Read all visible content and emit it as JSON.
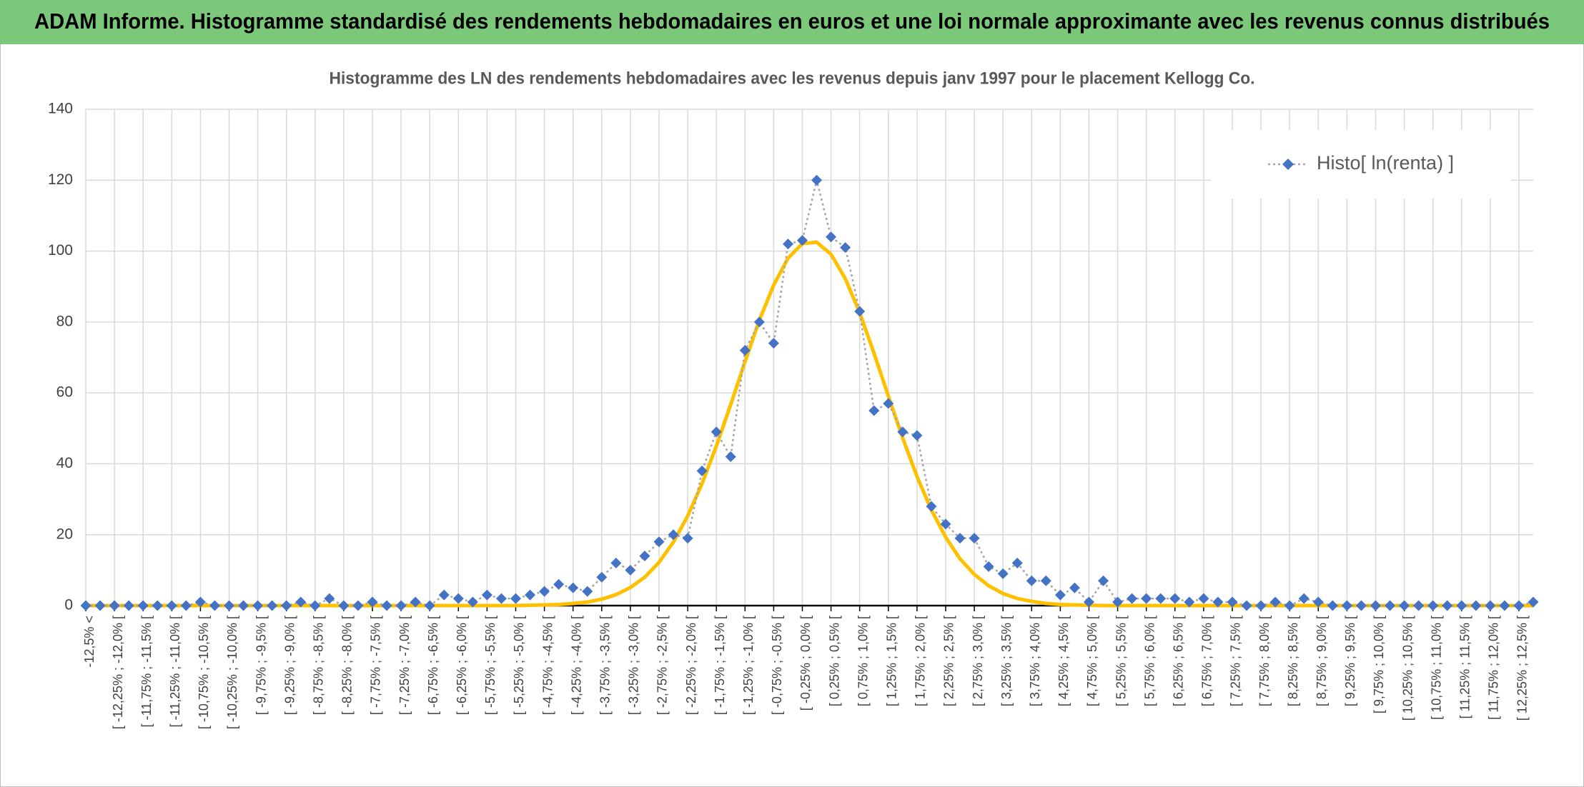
{
  "header": {
    "title": "ADAM Informe. Histogramme standardisé des rendements hebdomadaires en euros et une loi normale approximante avec les revenus connus distribués"
  },
  "chart_data": {
    "type": "line",
    "title": "Histogramme des LN des rendements hebdomadaires avec les revenus depuis janv 1997 pour le placement Kellogg Co.",
    "categories": [
      "-12,5% <",
      null,
      "[ -12,25% ; -12,0% [",
      null,
      "[ -11,75% ; -11,5% [",
      null,
      "[ -11,25% ; -11,0% [",
      null,
      "[ -10,75% ; -10,5% [",
      null,
      "[ -10,25% ; -10,0% [",
      null,
      "[ -9,75% ; -9,5% [",
      null,
      "[ -9,25% ; -9,0% [",
      null,
      "[ -8,75% ; -8,5% [",
      null,
      "[ -8,25% ; -8,0% [",
      null,
      "[ -7,75% ; -7,5% [",
      null,
      "[ -7,25% ; -7,0% [",
      null,
      "[ -6,75% ; -6,5% [",
      null,
      "[ -6,25% ; -6,0% [",
      null,
      "[ -5,75% ; -5,5% [",
      null,
      "[ -5,25% ; -5,0% [",
      null,
      "[ -4,75% ; -4,5% [",
      null,
      "[ -4,25% ; -4,0% [",
      null,
      "[ -3,75% ; -3,5% [",
      null,
      "[ -3,25% ; -3,0% [",
      null,
      "[ -2,75% ; -2,5% [",
      null,
      "[ -2,25% ; -2,0% [",
      null,
      "[ -1,75% ; -1,5% [",
      null,
      "[ -1,25% ; -1,0% [",
      null,
      "[ -0,75% ; -0,5% [",
      null,
      "[ -0,25% ; 0,0% [",
      null,
      "[ 0,25% ; 0,5% [",
      null,
      "[ 0,75% ; 1,0% [",
      null,
      "[ 1,25% ; 1,5% [",
      null,
      "[ 1,75% ; 2,0% [",
      null,
      "[ 2,25% ; 2,5% [",
      null,
      "[ 2,75% ; 3,0% [",
      null,
      "[ 3,25% ; 3,5% [",
      null,
      "[ 3,75% ; 4,0% [",
      null,
      "[ 4,25% ; 4,5% [",
      null,
      "[ 4,75% ; 5,0% [",
      null,
      "[ 5,25% ; 5,5% [",
      null,
      "[ 5,75% ; 6,0% [",
      null,
      "[ 6,25% ; 6,5% [",
      null,
      "[ 6,75% ; 7,0% [",
      null,
      "[ 7,25% ; 7,5% [",
      null,
      "[ 7,75% ; 8,0% [",
      null,
      "[ 8,25% ; 8,5% [",
      null,
      "[ 8,75% ; 9,0% [",
      null,
      "[ 9,25% ; 9,5% [",
      null,
      "[ 9,75% ; 10,0% [",
      null,
      "[ 10,25% ; 10,5% [",
      null,
      "[ 10,75% ; 11,0% [",
      null,
      "[ 11,25% ; 11,5% [",
      null,
      "[ 11,75% ; 12,0% [",
      null,
      "[ 12,25% ; 12,5% [",
      null
    ],
    "series": [
      {
        "name": "Histo[ ln(renta) ]",
        "color": "#4472c4",
        "line_color": "#a5a5a5",
        "marker": "diamond",
        "values": [
          0,
          0,
          0,
          0,
          0,
          0,
          0,
          0,
          1,
          0,
          0,
          0,
          0,
          0,
          0,
          1,
          0,
          2,
          0,
          0,
          1,
          0,
          0,
          1,
          0,
          3,
          2,
          1,
          3,
          2,
          2,
          3,
          4,
          6,
          5,
          4,
          8,
          12,
          10,
          14,
          18,
          20,
          19,
          38,
          49,
          42,
          72,
          80,
          74,
          102,
          103,
          120,
          104,
          101,
          83,
          55,
          57,
          49,
          48,
          28,
          23,
          19,
          19,
          11,
          9,
          12,
          7,
          7,
          3,
          5,
          1,
          7,
          1,
          2,
          2,
          2,
          2,
          1,
          2,
          1,
          1,
          0,
          0,
          1,
          0,
          2,
          1,
          0,
          0,
          0,
          0,
          0,
          0,
          0,
          0,
          0,
          0,
          0,
          0,
          0,
          0,
          1
        ]
      },
      {
        "color": "#ffc000",
        "values": [
          0,
          0,
          0,
          0,
          0,
          0,
          0,
          0,
          0,
          0,
          0,
          0,
          0,
          0,
          0,
          0,
          0,
          0,
          0,
          0,
          0,
          0,
          0,
          0,
          0,
          0,
          0,
          0,
          0,
          0,
          0,
          0.1,
          0.2,
          0.3,
          0.6,
          1,
          1.8,
          3.1,
          5.1,
          8,
          12.2,
          17.9,
          25.3,
          34.4,
          45,
          56.7,
          68.8,
          80.5,
          90.4,
          98,
          102.1,
          102.5,
          99.1,
          92.2,
          82.6,
          71.2,
          59.1,
          47.3,
          36.4,
          27,
          19.3,
          13.2,
          8.8,
          5.6,
          3.4,
          2,
          1.2,
          0.6,
          0.3,
          0.2,
          0.1,
          0,
          0,
          0,
          0,
          0,
          0,
          0,
          0,
          0,
          0,
          0,
          0,
          0,
          0,
          0,
          0,
          0,
          0,
          0,
          0,
          0,
          0,
          0,
          0,
          0,
          0,
          0,
          0,
          0,
          0,
          0
        ]
      }
    ],
    "ylim": [
      0,
      140
    ],
    "yticks": [
      0,
      20,
      40,
      60,
      80,
      100,
      120,
      140
    ],
    "grid": true,
    "legend": "upper right"
  }
}
